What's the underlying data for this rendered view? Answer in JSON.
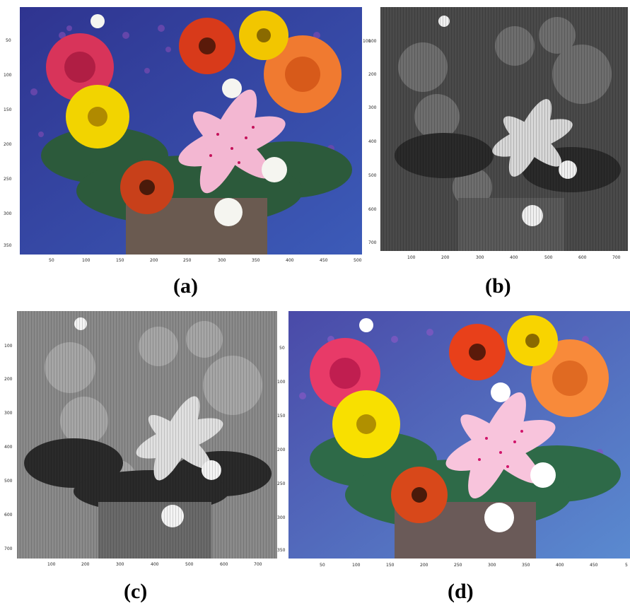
{
  "panels": [
    {
      "id": "a",
      "caption": "(a)",
      "mode": "color",
      "y_ticks": [
        "50",
        "100",
        "150",
        "200",
        "250",
        "300",
        "350"
      ],
      "x_ticks": [
        "50",
        "100",
        "150",
        "200",
        "250",
        "300",
        "350",
        "400",
        "450",
        "500"
      ]
    },
    {
      "id": "b",
      "caption": "(b)",
      "mode": "grayscale",
      "y_ticks": [
        "100",
        "200",
        "300",
        "400",
        "500",
        "600",
        "700"
      ],
      "x_ticks": [
        "100",
        "200",
        "300",
        "400",
        "500",
        "600",
        "700"
      ]
    },
    {
      "id": "c",
      "caption": "(c)",
      "mode": "grayscale",
      "y_ticks": [
        "100",
        "200",
        "300",
        "400",
        "500",
        "600",
        "700"
      ],
      "x_ticks": [
        "100",
        "200",
        "300",
        "400",
        "500",
        "600",
        "700"
      ]
    },
    {
      "id": "d",
      "caption": "(d)",
      "mode": "color",
      "y_ticks": [
        "50",
        "100",
        "150",
        "200",
        "250",
        "300",
        "350"
      ],
      "x_ticks": [
        "50",
        "100",
        "150",
        "200",
        "250",
        "300",
        "350",
        "400",
        "450",
        "5"
      ]
    }
  ],
  "colors": {
    "background_blue": "#3a3f9a",
    "rose_pink": "#d8345a",
    "rose_orange": "#f07a30",
    "daisy_yellow": "#f2d400",
    "gerbera_red": "#d83a1a",
    "lily_pink": "#f3b7d2",
    "lily_spots": "#c4125a",
    "leaf_green": "#2f5a3a",
    "lavender": "#5a3b9a",
    "white_flower": "#f5f5f0"
  }
}
